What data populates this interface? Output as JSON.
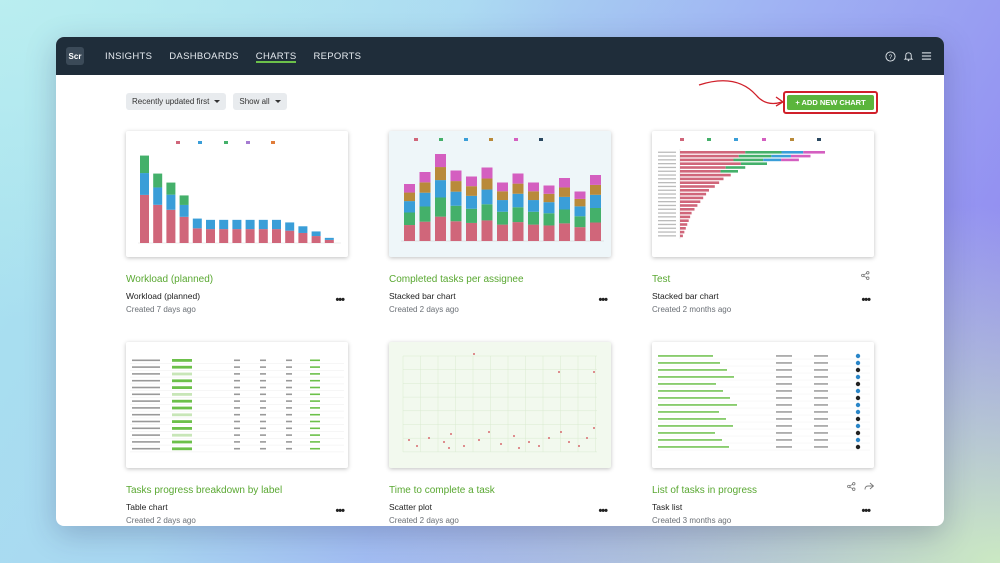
{
  "nav": {
    "logo": "Scr",
    "items": [
      "INSIGHTS",
      "DASHBOARDS",
      "CHARTS",
      "REPORTS"
    ],
    "active": "CHARTS"
  },
  "toolbar": {
    "sort_label": "Recently updated first",
    "filter_label": "Show all",
    "add_label": "+ ADD NEW CHART"
  },
  "colors": {
    "accent": "#5bb53c",
    "navbar": "#1f2d3a",
    "highlight": "#d0202a"
  },
  "cards": [
    {
      "title": "Workload (planned)",
      "type": "Workload (planned)",
      "created": "Created 7 days ago",
      "icon": "more-icon"
    },
    {
      "title": "Completed tasks per assignee",
      "type": "Stacked bar chart",
      "created": "Created 2 days ago",
      "icon": "more-icon"
    },
    {
      "title": "Test",
      "type": "Stacked bar chart",
      "created": "Created 2 months ago",
      "icon": "share-icon"
    },
    {
      "title": "Tasks progress breakdown by label",
      "type": "Table chart",
      "created": "Created 2 days ago",
      "icon": "more-icon"
    },
    {
      "title": "Time to complete a task",
      "type": "Scatter plot",
      "created": "Created 2 days ago",
      "icon": "more-icon"
    },
    {
      "title": "List of tasks in progress",
      "type": "Task list",
      "created": "Created 3 months ago",
      "icon": "share-icon"
    }
  ],
  "chart_data": [
    {
      "type": "bar",
      "values": [
        68,
        54,
        47,
        37,
        19,
        18,
        18,
        18,
        18,
        18,
        18,
        16,
        13,
        9,
        4
      ]
    },
    {
      "type": "bar",
      "values": [
        38,
        46,
        58,
        47,
        43,
        49,
        39,
        45,
        39,
        37,
        42,
        33,
        44
      ]
    },
    {
      "type": "bar",
      "values": [
        100,
        90,
        82,
        60,
        45,
        40,
        35,
        30,
        27,
        24,
        20,
        18,
        16,
        14,
        12,
        10,
        8,
        7,
        6,
        5,
        4,
        3,
        2
      ]
    }
  ]
}
